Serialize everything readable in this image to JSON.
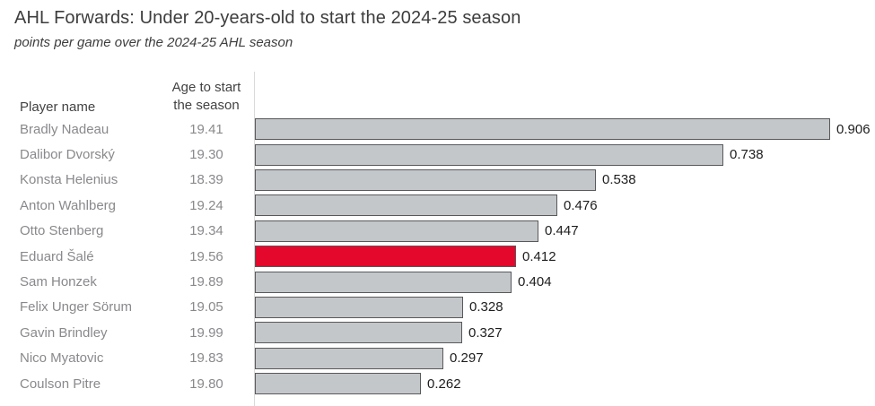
{
  "header": {
    "title": "AHL Forwards: Under 20-years-old to start the 2024-25 season",
    "subtitle": "points per game over the 2024-25 AHL season"
  },
  "table": {
    "player_header": "Player name",
    "age_header": "Age to start\nthe season"
  },
  "colors": {
    "bar_fill": "#c4c7c9",
    "bar_border": "#58595b",
    "highlight_fill": "#e5082d",
    "title_text": "#3d3d3d",
    "muted_text": "#89898d",
    "value_text": "#1d1d1d",
    "axis_line": "#d9d9d9"
  },
  "chart_data": {
    "type": "bar",
    "orientation": "horizontal",
    "title": "AHL Forwards: Under 20-years-old to start the 2024-25 season",
    "subtitle": "points per game over the 2024-25 AHL season",
    "xlabel": "points per game",
    "ylabel": "Player name",
    "xlim": [
      0,
      0.95
    ],
    "grid": false,
    "legend": "none",
    "highlight_player": "Eduard Šalé",
    "rows": [
      {
        "player": "Bradly Nadeau",
        "age": "19.41",
        "value": 0.906,
        "highlight": false
      },
      {
        "player": "Dalibor Dvorský",
        "age": "19.30",
        "value": 0.738,
        "highlight": false
      },
      {
        "player": "Konsta Helenius",
        "age": "18.39",
        "value": 0.538,
        "highlight": false
      },
      {
        "player": "Anton Wahlberg",
        "age": "19.24",
        "value": 0.476,
        "highlight": false
      },
      {
        "player": "Otto Stenberg",
        "age": "19.34",
        "value": 0.447,
        "highlight": false
      },
      {
        "player": "Eduard Šalé",
        "age": "19.56",
        "value": 0.412,
        "highlight": true
      },
      {
        "player": "Sam Honzek",
        "age": "19.89",
        "value": 0.404,
        "highlight": false
      },
      {
        "player": "Felix Unger Sörum",
        "age": "19.05",
        "value": 0.328,
        "highlight": false
      },
      {
        "player": "Gavin Brindley",
        "age": "19.99",
        "value": 0.327,
        "highlight": false
      },
      {
        "player": "Nico Myatovic",
        "age": "19.83",
        "value": 0.297,
        "highlight": false
      },
      {
        "player": "Coulson Pitre",
        "age": "19.80",
        "value": 0.262,
        "highlight": false
      }
    ]
  }
}
